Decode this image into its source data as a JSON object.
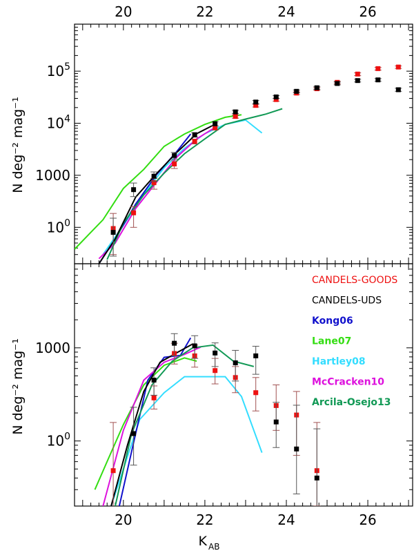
{
  "chart_data": [
    {
      "type": "line",
      "panel": "top",
      "title": "",
      "xlabel": "",
      "ylabel": "N deg⁻² mag⁻¹",
      "xlim": [
        18.8,
        27.1
      ],
      "ylim": [
        20,
        800000
      ],
      "yscale": "log",
      "ytick_labels": [
        {
          "value": 100,
          "label": "100"
        },
        {
          "value": 1000,
          "label": "1000"
        },
        {
          "value": 10000,
          "label": "10⁴"
        },
        {
          "value": 100000,
          "label": "10⁵"
        }
      ],
      "points": [
        {
          "name": "CANDELS-GOODS",
          "x": [
            19.75,
            20.25,
            20.75,
            21.25,
            21.75,
            22.25,
            22.75,
            23.25,
            23.75,
            24.25,
            24.75,
            25.25,
            25.75,
            26.25,
            26.75
          ],
          "y": [
            95,
            190,
            720,
            1650,
            4500,
            8200,
            13500,
            22000,
            28500,
            38000,
            46000,
            61000,
            88000,
            112000,
            120000
          ],
          "yerr": [
            [
              65,
              90
            ],
            [
              90,
              60
            ],
            [
              180,
              150
            ],
            [
              300,
              250
            ],
            [
              500,
              400
            ],
            [
              800,
              600
            ],
            [
              1000,
              800
            ],
            [
              1500,
              1200
            ],
            [
              2000,
              1500
            ],
            [
              2500,
              2000
            ],
            [
              3000,
              2500
            ],
            [
              4000,
              3000
            ],
            [
              6000,
              5000
            ],
            [
              7000,
              6000
            ],
            [
              7000,
              6000
            ]
          ]
        },
        {
          "name": "CANDELS-UDS",
          "x": [
            19.75,
            20.25,
            20.75,
            21.25,
            21.75,
            22.25,
            22.75,
            23.25,
            23.75,
            24.25,
            24.75,
            25.25,
            25.75,
            26.25,
            26.75
          ],
          "y": [
            80,
            530,
            960,
            2400,
            6000,
            9800,
            16500,
            25500,
            32000,
            41000,
            48000,
            58000,
            66000,
            68000,
            44000
          ],
          "yerr": [
            [
              52,
              70
            ],
            [
              140,
              180
            ],
            [
              200,
              200
            ],
            [
              350,
              350
            ],
            [
              600,
              600
            ],
            [
              900,
              900
            ],
            [
              1200,
              1200
            ],
            [
              1800,
              1800
            ],
            [
              2000,
              2000
            ],
            [
              2500,
              2500
            ],
            [
              3000,
              3000
            ],
            [
              3500,
              3500
            ],
            [
              4000,
              4000
            ],
            [
              4000,
              4000
            ],
            [
              3000,
              3000
            ]
          ]
        }
      ],
      "series": [
        {
          "name": "Lane07",
          "color": "#33dd11",
          "x": [
            18.8,
            19.5,
            20.0,
            20.5,
            21.0,
            21.5,
            22.0,
            22.5,
            22.9
          ],
          "y": [
            38,
            140,
            560,
            1300,
            3600,
            6200,
            9500,
            13000,
            14500
          ]
        },
        {
          "name": "Hartley08",
          "color": "#33ddff",
          "x": [
            19.5,
            20.0,
            20.5,
            21.0,
            21.5,
            22.0,
            22.5,
            23.0,
            23.4
          ],
          "y": [
            30,
            110,
            430,
            1400,
            3300,
            6300,
            9500,
            11500,
            6500
          ]
        },
        {
          "name": "Kong06",
          "color": "#1111cc",
          "x": [
            19.4,
            19.8,
            20.3,
            20.8,
            21.3,
            21.65
          ],
          "y": [
            20,
            60,
            280,
            1000,
            2800,
            6200
          ]
        },
        {
          "name": "McCracken10",
          "color": "#dd11dd",
          "x": [
            19.4,
            19.8,
            20.3,
            20.8,
            21.3,
            21.8,
            22.3
          ],
          "y": [
            25,
            50,
            230,
            720,
            2200,
            5000,
            8800
          ]
        },
        {
          "name": "Arcila-Osejo13",
          "color": "#119955",
          "x": [
            19.6,
            20.0,
            20.5,
            21.0,
            21.5,
            22.0,
            22.5,
            23.0,
            23.5,
            23.9
          ],
          "y": [
            24,
            120,
            420,
            1100,
            2600,
            5000,
            9500,
            12000,
            15000,
            19000
          ]
        },
        {
          "name": "CANDELS-UDS line",
          "color": "#000000",
          "x": [
            19.4,
            19.8,
            20.3,
            20.8,
            21.3,
            21.8,
            22.3
          ],
          "y": [
            20,
            60,
            380,
            1050,
            2700,
            6300,
            10000
          ]
        }
      ]
    },
    {
      "type": "line",
      "panel": "bottom",
      "title": "",
      "xlabel": "K_AB",
      "ylabel": "N deg⁻² mag⁻¹",
      "xlim": [
        18.8,
        27.1
      ],
      "ylim": [
        20,
        8000
      ],
      "yscale": "log",
      "xtick_labels": [
        "20",
        "22",
        "24",
        "26"
      ],
      "xticks": [
        20,
        22,
        24,
        26
      ],
      "ytick_labels": [
        {
          "value": 100,
          "label": "100"
        },
        {
          "value": 1000,
          "label": "1000"
        }
      ],
      "points": [
        {
          "name": "CANDELS-GOODS",
          "x": [
            19.75,
            20.75,
            21.25,
            21.75,
            22.25,
            22.75,
            23.25,
            23.75,
            24.25,
            24.75
          ],
          "y": [
            48,
            290,
            870,
            820,
            570,
            480,
            330,
            240,
            190,
            48
          ],
          "yerr": [
            [
              30,
              110
            ],
            [
              70,
              100
            ],
            [
              200,
              250
            ],
            [
              200,
              250
            ],
            [
              160,
              200
            ],
            [
              150,
              150
            ],
            [
              120,
              150
            ],
            [
              110,
              160
            ],
            [
              120,
              150
            ],
            [
              28,
              110
            ]
          ]
        },
        {
          "name": "CANDELS-UDS",
          "x": [
            20.25,
            20.75,
            21.25,
            21.75,
            22.25,
            22.75,
            23.25,
            23.75,
            24.25,
            24.75
          ],
          "y": [
            120,
            450,
            1120,
            1050,
            880,
            690,
            820,
            160,
            82,
            40
          ],
          "yerr": [
            [
              65,
              110
            ],
            [
              140,
              160
            ],
            [
              300,
              300
            ],
            [
              280,
              300
            ],
            [
              250,
              250
            ],
            [
              250,
              250
            ],
            [
              300,
              220
            ],
            [
              75,
              100
            ],
            [
              55,
              160
            ],
            [
              25,
              95
            ]
          ]
        }
      ],
      "series": [
        {
          "name": "Lane07",
          "color": "#33dd11",
          "x": [
            19.3,
            19.6,
            20.0,
            20.5,
            21.0,
            21.5,
            21.8
          ],
          "y": [
            30,
            60,
            150,
            400,
            650,
            780,
            720
          ]
        },
        {
          "name": "Hartley08",
          "color": "#33ddff",
          "x": [
            19.7,
            20.0,
            20.4,
            21.0,
            21.5,
            22.0,
            22.5,
            22.9,
            23.4
          ],
          "y": [
            20,
            50,
            170,
            330,
            490,
            490,
            490,
            300,
            75
          ]
        },
        {
          "name": "Kong06",
          "color": "#1111cc",
          "x": [
            19.9,
            20.3,
            20.6,
            21.0,
            21.4,
            21.65
          ],
          "y": [
            20,
            120,
            450,
            790,
            830,
            1280
          ]
        },
        {
          "name": "McCracken10",
          "color": "#dd11dd",
          "x": [
            19.5,
            20.0,
            20.5,
            21.0,
            21.5,
            21.9
          ],
          "y": [
            20,
            130,
            450,
            700,
            850,
            1020
          ]
        },
        {
          "name": "Arcila-Osejo13",
          "color": "#119955",
          "x": [
            19.8,
            20.2,
            20.7,
            21.2,
            21.7,
            22.2,
            22.7,
            23.2
          ],
          "y": [
            20,
            120,
            400,
            720,
            1000,
            1070,
            720,
            630
          ]
        },
        {
          "name": "CANDELS-UDS line",
          "color": "#000000",
          "x": [
            19.7,
            20.1,
            20.5,
            20.9,
            21.3,
            21.7
          ],
          "y": [
            20,
            90,
            340,
            700,
            880,
            1100
          ]
        }
      ]
    }
  ],
  "legend": {
    "placement": "bottom-panel-right",
    "entries": [
      {
        "label": "CANDELS-GOODS",
        "color": "#ee1111"
      },
      {
        "label": "CANDELS-UDS",
        "color": "#000000"
      },
      {
        "label": "Kong06",
        "color": "#1111cc"
      },
      {
        "label": "Lane07",
        "color": "#33dd11"
      },
      {
        "label": "Hartley08",
        "color": "#33ddff"
      },
      {
        "label": "McCracken10",
        "color": "#dd11dd"
      },
      {
        "label": "Arcila-Osejo13",
        "color": "#119955"
      }
    ]
  },
  "labels": {
    "ylabel_top": "N deg⁻² mag⁻¹",
    "ylabel_bottom": "N deg⁻² mag⁻¹",
    "xlabel_main": "K",
    "xlabel_sub": "AB"
  },
  "colors": {
    "goods": "#ee1111",
    "uds": "#000000",
    "errbar_goods": "#a05050",
    "errbar_uds": "#555555"
  }
}
